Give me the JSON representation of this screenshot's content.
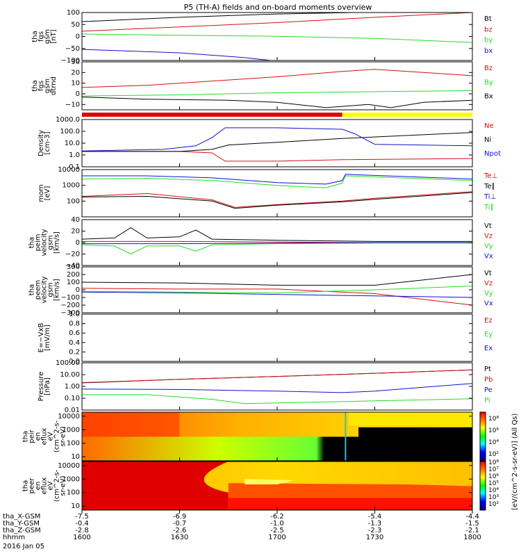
{
  "title": "P5 (TH-A) fields and on-board moments overview",
  "colors": {
    "black": "#000000",
    "red": "#d01010",
    "green": "#22dd22",
    "blue": "#1010cc",
    "yellow": "#ffff00"
  },
  "xaxis": {
    "tick_minutes": [
      0,
      30,
      60,
      90,
      120
    ],
    "rows": [
      {
        "label": "tha_X-GSM",
        "values": [
          "-7.5",
          "-6.9",
          "-6.2",
          "-5.4",
          "-4.4"
        ]
      },
      {
        "label": "tha_Y-GSM",
        "values": [
          "-0.4",
          "-0.7",
          "-1.0",
          "-1.3",
          "-1.5"
        ]
      },
      {
        "label": "tha_Z-GSM",
        "values": [
          "-2.8",
          "-2.6",
          "-2.5",
          "-2.3",
          "-2.1"
        ]
      },
      {
        "label": "hhmm",
        "values": [
          "1600",
          "1630",
          "1700",
          "1730",
          "1800"
        ]
      }
    ],
    "date": "2016 Jan 05"
  },
  "colorbar_label": "[eV/(cm^2-s-sr-eV)] (All Qs)",
  "colorbar_ticks": [
    {
      "label": "10⁸"
    },
    {
      "label": "10⁶"
    },
    {
      "label": "10⁴"
    },
    {
      "label": "10²"
    }
  ],
  "colorbar_ticks_lower": [
    {
      "label": "10⁸"
    },
    {
      "label": "10⁷"
    },
    {
      "label": "10⁶"
    },
    {
      "label": "10⁵"
    },
    {
      "label": "10⁴"
    },
    {
      "label": "10³"
    },
    {
      "label": "10²"
    }
  ],
  "chart_data": [
    {
      "type": "line",
      "ylabel": [
        "tha",
        "fgs",
        "gsm",
        "[nT]"
      ],
      "yscale": "linear",
      "ylim": [
        -100,
        100
      ],
      "ticks": [
        {
          "v": 100,
          "t": "100"
        },
        {
          "v": 50,
          "t": "50"
        },
        {
          "v": 0,
          "t": "0"
        },
        {
          "v": -50,
          "t": "−50"
        },
        {
          "v": -100,
          "t": "−100"
        }
      ],
      "series": [
        {
          "name": "Bt",
          "color": "#000000",
          "x": [
            0,
            30,
            60,
            84
          ],
          "y": [
            62,
            80,
            94,
            100
          ]
        },
        {
          "name": "bz",
          "color": "#d01010",
          "x": [
            0,
            30,
            60,
            90,
            120
          ],
          "y": [
            22,
            40,
            58,
            80,
            102
          ]
        },
        {
          "name": "by",
          "color": "#22dd22",
          "x": [
            0,
            30,
            60,
            90,
            120
          ],
          "y": [
            10,
            5,
            1,
            -8,
            -25
          ]
        },
        {
          "name": "bx",
          "color": "#1010cc",
          "x": [
            0,
            30,
            50,
            58
          ],
          "y": [
            -54,
            -68,
            -88,
            -100
          ]
        }
      ]
    },
    {
      "type": "line",
      "ylabel": [
        "tha",
        "fgs",
        "gsm",
        "dtrnd"
      ],
      "yscale": "linear",
      "ylim": [
        -15,
        30
      ],
      "ticks": [
        {
          "v": 30,
          "t": "30"
        },
        {
          "v": 20,
          "t": "20"
        },
        {
          "v": 10,
          "t": "10"
        },
        {
          "v": 0,
          "t": "0"
        },
        {
          "v": -10,
          "t": "−10"
        }
      ],
      "series": [
        {
          "name": "Bz",
          "color": "#d01010",
          "x": [
            0,
            20,
            40,
            60,
            80,
            90,
            100,
            120
          ],
          "y": [
            6,
            8,
            12,
            16,
            21,
            23,
            21,
            17
          ]
        },
        {
          "name": "By",
          "color": "#22dd22",
          "x": [
            0,
            30,
            60,
            90,
            120
          ],
          "y": [
            -2,
            -1,
            1,
            2,
            3
          ]
        },
        {
          "name": "Bx",
          "color": "#000000",
          "x": [
            0,
            20,
            45,
            60,
            75,
            88,
            95,
            105,
            120
          ],
          "y": [
            -3,
            -5,
            -6,
            -8,
            -13,
            -10,
            -13,
            -8,
            -6
          ]
        }
      ]
    },
    {
      "type": "line",
      "ylabel": [
        "Density",
        "[cm-3]"
      ],
      "yscale": "log",
      "ylim": [
        0.1,
        1000
      ],
      "ticks": [
        {
          "v": 1000,
          "t": "1000.0"
        },
        {
          "v": 100,
          "t": "100.0"
        },
        {
          "v": 10,
          "t": "10.0"
        },
        {
          "v": 1,
          "t": "1.0"
        },
        {
          "v": 0.1,
          "t": "0.1"
        }
      ],
      "series": [
        {
          "name": "Ne",
          "color": "#d01010",
          "x": [
            0,
            30,
            40,
            44,
            60,
            80,
            120
          ],
          "y": [
            2.0,
            2.0,
            1.5,
            0.3,
            0.3,
            0.4,
            0.5
          ]
        },
        {
          "name": "Ni",
          "color": "#000000",
          "x": [
            0,
            30,
            40,
            45,
            60,
            80,
            120
          ],
          "y": [
            2.0,
            2.0,
            3,
            7,
            12,
            25,
            80
          ]
        },
        {
          "name": "Npot",
          "color": "#1010cc",
          "x": [
            0,
            25,
            35,
            40,
            44,
            60,
            80,
            84,
            90,
            120
          ],
          "y": [
            2.2,
            3,
            6,
            30,
            200,
            200,
            150,
            60,
            8,
            6
          ]
        }
      ]
    },
    {
      "type": "line",
      "ylabel": [
        "mom",
        "[eV]"
      ],
      "yscale": "log",
      "ylim": [
        10,
        10000
      ],
      "ticks": [
        {
          "v": 10000,
          "t": "10000"
        },
        {
          "v": 1000,
          "t": "1000"
        },
        {
          "v": 100,
          "t": "100"
        }
      ],
      "series": [
        {
          "name": "Te⊥",
          "color": "#d01010",
          "x": [
            0,
            20,
            40,
            47,
            60,
            80,
            90,
            120
          ],
          "y": [
            200,
            300,
            120,
            40,
            60,
            100,
            150,
            400
          ]
        },
        {
          "name": "Te∥",
          "color": "#000000",
          "x": [
            0,
            20,
            40,
            47,
            60,
            80,
            90,
            120
          ],
          "y": [
            180,
            200,
            100,
            35,
            55,
            90,
            130,
            350
          ]
        },
        {
          "name": "Ti⊥",
          "color": "#1010cc",
          "x": [
            0,
            20,
            40,
            60,
            75,
            80,
            81,
            120
          ],
          "y": [
            4000,
            4000,
            3000,
            1500,
            1200,
            2000,
            5000,
            2500
          ]
        },
        {
          "name": "Ti∥",
          "color": "#22dd22",
          "x": [
            0,
            20,
            40,
            60,
            75,
            80,
            81,
            120
          ],
          "y": [
            2500,
            2800,
            2000,
            1000,
            700,
            1400,
            4000,
            2000
          ]
        }
      ]
    },
    {
      "type": "line",
      "ylabel": [
        "tha",
        "peim",
        "velocity",
        "gsm",
        "[km/s]"
      ],
      "yscale": "linear",
      "ylim": [
        -40,
        40
      ],
      "ticks": [
        {
          "v": 40,
          "t": "40"
        },
        {
          "v": 20,
          "t": "20"
        },
        {
          "v": 0,
          "t": "0"
        },
        {
          "v": -20,
          "t": "−20"
        },
        {
          "v": -40,
          "t": "−40"
        }
      ],
      "series": [
        {
          "name": "Vt",
          "color": "#000000",
          "x": [
            0,
            10,
            15,
            20,
            30,
            35,
            40,
            60,
            90,
            120
          ],
          "y": [
            6,
            8,
            26,
            8,
            10,
            22,
            6,
            4,
            2,
            2
          ]
        },
        {
          "name": "Vz",
          "color": "#d01010",
          "x": [
            0,
            30,
            60,
            90,
            120
          ],
          "y": [
            2,
            2,
            1,
            0,
            0
          ]
        },
        {
          "name": "Vy",
          "color": "#22dd22",
          "x": [
            0,
            10,
            15,
            20,
            30,
            35,
            40,
            60,
            90,
            120
          ],
          "y": [
            -4,
            -6,
            -20,
            -6,
            -6,
            -15,
            -4,
            -2,
            -1,
            -1
          ]
        },
        {
          "name": "Vx",
          "color": "#1010cc",
          "x": [
            0,
            30,
            60,
            90,
            120
          ],
          "y": [
            -2,
            -2,
            -1,
            0,
            0
          ]
        }
      ]
    },
    {
      "type": "line",
      "ylabel": [
        "tha",
        "peem",
        "velocity",
        "gsm",
        "[km/s]"
      ],
      "yscale": "linear",
      "ylim": [
        -300,
        300
      ],
      "ticks": [
        {
          "v": 300,
          "t": "300"
        },
        {
          "v": 200,
          "t": "200"
        },
        {
          "v": 100,
          "t": "100"
        },
        {
          "v": 0,
          "t": "0"
        },
        {
          "v": -100,
          "t": "−100"
        },
        {
          "v": -200,
          "t": "−200"
        },
        {
          "v": -300,
          "t": "−300"
        }
      ],
      "series": [
        {
          "name": "Vt",
          "color": "#000000",
          "x": [
            0,
            30,
            60,
            90,
            120
          ],
          "y": [
            100,
            90,
            60,
            60,
            200
          ]
        },
        {
          "name": "Vz",
          "color": "#d01010",
          "x": [
            0,
            30,
            60,
            90,
            120
          ],
          "y": [
            20,
            10,
            10,
            -50,
            -200
          ]
        },
        {
          "name": "Vy",
          "color": "#22dd22",
          "x": [
            0,
            30,
            60,
            90,
            120
          ],
          "y": [
            -20,
            -30,
            -40,
            0,
            50
          ]
        },
        {
          "name": "Vx",
          "color": "#1010cc",
          "x": [
            0,
            30,
            60,
            90,
            120
          ],
          "y": [
            -30,
            -40,
            -60,
            -80,
            -100
          ]
        }
      ]
    },
    {
      "type": "line",
      "ylabel": [
        "E=−VxB",
        "[mV/m]"
      ],
      "yscale": "linear",
      "ylim": [
        0,
        1
      ],
      "ticks": [
        {
          "v": 1,
          "t": "1.0"
        },
        {
          "v": 0.8,
          "t": "0.8"
        },
        {
          "v": 0.6,
          "t": "0.6"
        },
        {
          "v": 0.4,
          "t": "0.4"
        },
        {
          "v": 0.2,
          "t": "0.2"
        },
        {
          "v": 0,
          "t": "0.0"
        }
      ],
      "series": [
        {
          "name": "Ez",
          "color": "#d01010",
          "x": [],
          "y": []
        },
        {
          "name": "Ey",
          "color": "#22dd22",
          "x": [],
          "y": []
        },
        {
          "name": "Ex",
          "color": "#1010cc",
          "x": [],
          "y": []
        }
      ]
    },
    {
      "type": "line",
      "ylabel": [
        "Pressure",
        "[nPa]"
      ],
      "yscale": "log",
      "ylim": [
        0.01,
        100
      ],
      "ticks": [
        {
          "v": 100,
          "t": "100.00"
        },
        {
          "v": 10,
          "t": "10.00"
        },
        {
          "v": 1,
          "t": "1.00"
        },
        {
          "v": 0.1,
          "t": "0.10"
        },
        {
          "v": 0.01,
          "t": "0.01"
        }
      ],
      "series": [
        {
          "name": "Pt",
          "color": "#000000",
          "x": [
            0,
            30,
            60,
            90,
            120
          ],
          "y": [
            2.0,
            4.0,
            7,
            13,
            25
          ]
        },
        {
          "name": "Pb",
          "color": "#d01010",
          "x": [
            0,
            30,
            60,
            90,
            120
          ],
          "y": [
            2.1,
            4.0,
            7,
            13,
            25
          ]
        },
        {
          "name": "Pe",
          "color": "#1010cc",
          "x": [
            0,
            30,
            60,
            80,
            90,
            120
          ],
          "y": [
            0.6,
            0.55,
            0.4,
            0.3,
            0.4,
            1.8
          ]
        },
        {
          "name": "Pi",
          "color": "#22dd22",
          "x": [
            0,
            20,
            40,
            50,
            60,
            90,
            120
          ],
          "y": [
            0.2,
            0.2,
            0.08,
            0.035,
            0.04,
            0.06,
            0.09
          ]
        }
      ]
    },
    {
      "type": "heatmap",
      "ylabel": [
        "tha",
        "peir",
        "en",
        "eflux",
        "eV",
        "(cm^2-s-",
        "sr-eV)"
      ],
      "yscale": "log",
      "ylim": [
        5,
        20000
      ],
      "ticks": [
        {
          "v": 10000,
          "t": "10000"
        },
        {
          "v": 1000,
          "t": "1000"
        },
        {
          "v": 100,
          "t": "100"
        },
        {
          "v": 10,
          "t": "10"
        }
      ]
    },
    {
      "type": "heatmap",
      "ylabel": [
        "tha",
        "peer",
        "en",
        "eflux",
        "eV",
        "(cm^2-s-",
        "sr-eV)"
      ],
      "yscale": "log",
      "ylim": [
        5,
        20000
      ],
      "ticks": [
        {
          "v": 10000,
          "t": "10000"
        },
        {
          "v": 1000,
          "t": "1000"
        },
        {
          "v": 100,
          "t": "100"
        },
        {
          "v": 10,
          "t": "10"
        }
      ]
    }
  ]
}
